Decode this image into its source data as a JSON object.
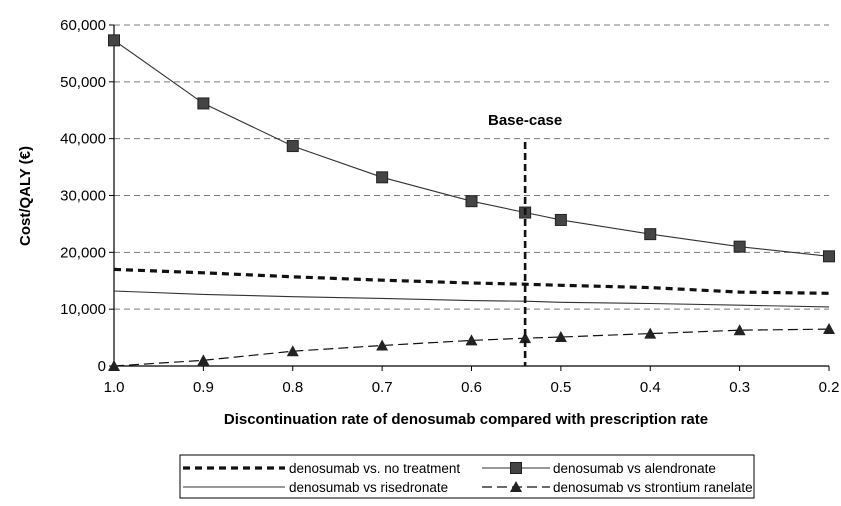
{
  "chart_data": {
    "type": "line",
    "title": "",
    "xlabel": "Discontinuation rate of denosumab compared with prescription rate",
    "ylabel": "Cost/QALY (€)",
    "x": [
      1.0,
      0.9,
      0.8,
      0.7,
      0.6,
      0.54,
      0.5,
      0.4,
      0.3,
      0.2
    ],
    "x_ticks": [
      "1.0",
      "0.9",
      "0.8",
      "0.7",
      "0.6",
      "0.5",
      "0.4",
      "0.3",
      "0.2"
    ],
    "xlim": [
      1.0,
      0.2
    ],
    "x_reversed": true,
    "ylim": [
      0,
      60000
    ],
    "y_ticks": [
      "0",
      "10,000",
      "20,000",
      "30,000",
      "40,000",
      "50,000",
      "60,000"
    ],
    "grid": "horizontal dashed",
    "legend_position": "bottom",
    "annotation": {
      "label": "Base-case",
      "x": 0.54
    },
    "series": [
      {
        "name": "denosumab vs. no treatment",
        "style": "dashed-bold",
        "marker": "none",
        "values": [
          17000,
          16400,
          15700,
          15100,
          14600,
          14400,
          14200,
          13800,
          13000,
          12800
        ]
      },
      {
        "name": "denosumab vs alendronate",
        "style": "solid",
        "marker": "square",
        "values": [
          57300,
          46200,
          38700,
          33200,
          29000,
          27000,
          25700,
          23200,
          21000,
          19300
        ]
      },
      {
        "name": "denosumab vs risedronate",
        "style": "solid",
        "marker": "none",
        "values": [
          13200,
          12600,
          12200,
          11900,
          11500,
          11400,
          11200,
          11000,
          10700,
          10400
        ]
      },
      {
        "name": "denosumab vs strontium ranelate",
        "style": "dashed",
        "marker": "triangle",
        "values": [
          0,
          1000,
          2600,
          3600,
          4500,
          4900,
          5100,
          5700,
          6300,
          6500
        ]
      }
    ]
  }
}
